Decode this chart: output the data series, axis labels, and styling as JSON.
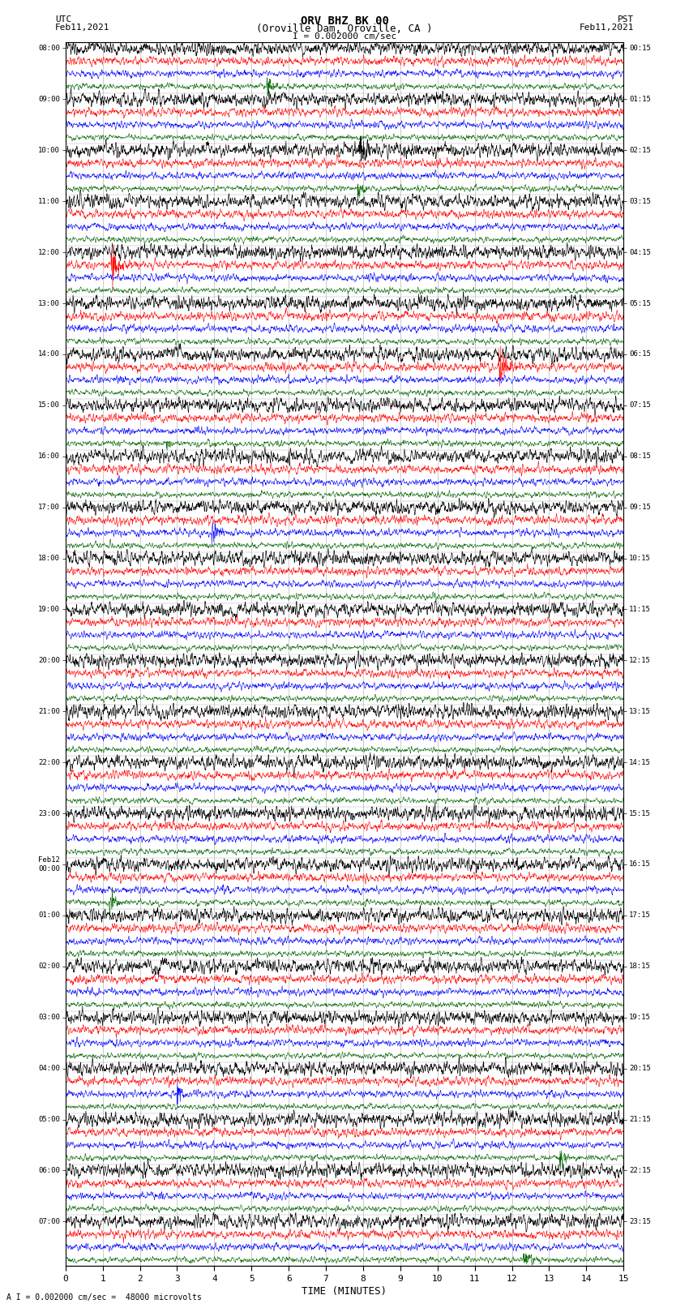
{
  "title_line1": "ORV BHZ BK 00",
  "title_line2": "(Oroville Dam, Oroville, CA )",
  "scale_text": "I = 0.002000 cm/sec",
  "bottom_note": "A I = 0.002000 cm/sec =  48000 microvolts",
  "utc_label": "UTC",
  "utc_date": "Feb11,2021",
  "pst_label": "PST",
  "pst_date": "Feb11,2021",
  "xlabel": "TIME (MINUTES)",
  "xmin": 0,
  "xmax": 15,
  "xticks": [
    0,
    1,
    2,
    3,
    4,
    5,
    6,
    7,
    8,
    9,
    10,
    11,
    12,
    13,
    14,
    15
  ],
  "utc_times": [
    "08:00",
    "09:00",
    "10:00",
    "11:00",
    "12:00",
    "13:00",
    "14:00",
    "15:00",
    "16:00",
    "17:00",
    "18:00",
    "19:00",
    "20:00",
    "21:00",
    "22:00",
    "23:00",
    "Feb12\n00:00",
    "01:00",
    "02:00",
    "03:00",
    "04:00",
    "05:00",
    "06:00",
    "07:00"
  ],
  "pst_times": [
    "00:15",
    "01:15",
    "02:15",
    "03:15",
    "04:15",
    "05:15",
    "06:15",
    "07:15",
    "08:15",
    "09:15",
    "10:15",
    "11:15",
    "12:15",
    "13:15",
    "14:15",
    "15:15",
    "16:15",
    "17:15",
    "18:15",
    "19:15",
    "20:15",
    "21:15",
    "22:15",
    "23:15"
  ],
  "num_hour_groups": 24,
  "traces_per_group": 4,
  "colors": [
    "black",
    "red",
    "blue",
    "darkgreen"
  ],
  "background": "white",
  "vline_color": "#888888",
  "vline_alpha": 0.6,
  "sample_points": 2000,
  "amp_black": 0.28,
  "amp_red": 0.18,
  "amp_blue": 0.15,
  "amp_green": 0.12,
  "fig_width": 8.5,
  "fig_height": 16.13,
  "dpi": 100
}
